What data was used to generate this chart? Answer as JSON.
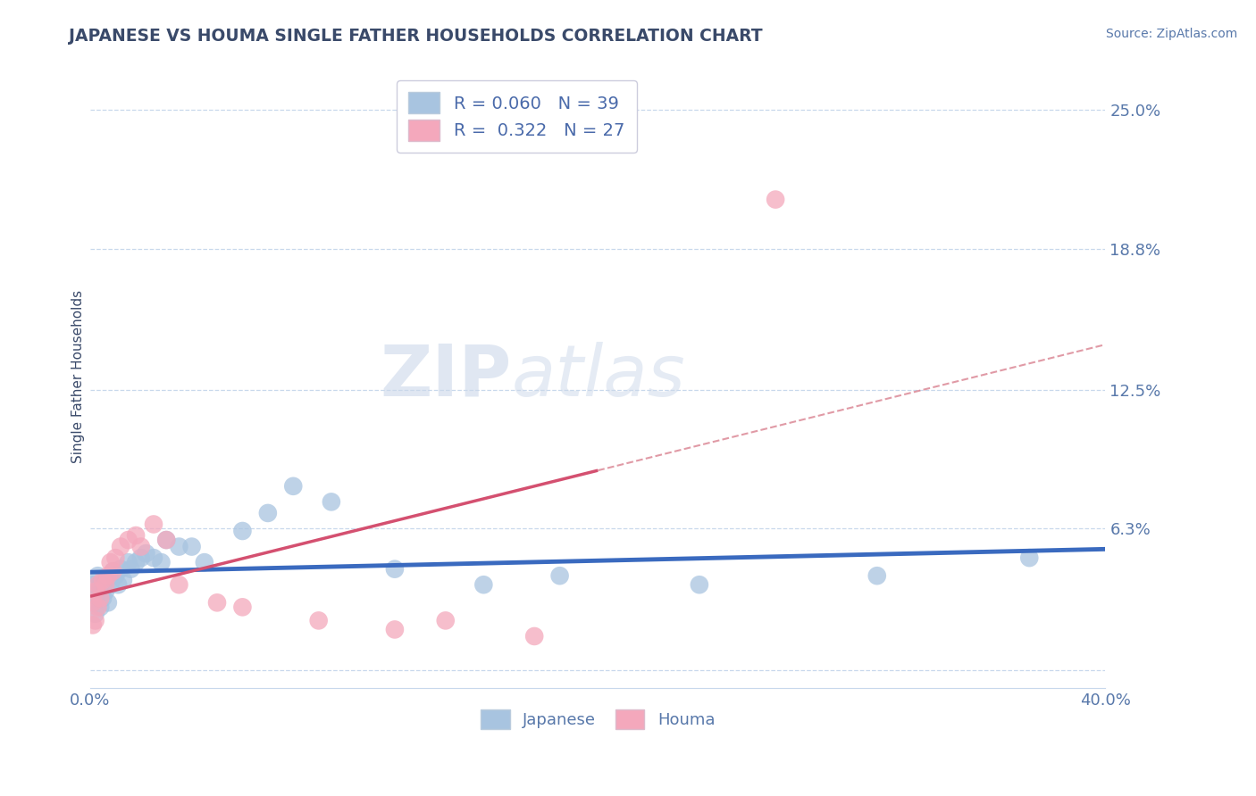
{
  "title": "JAPANESE VS HOUMA SINGLE FATHER HOUSEHOLDS CORRELATION CHART",
  "source": "Source: ZipAtlas.com",
  "ylabel": "Single Father Households",
  "xlim": [
    0.0,
    0.4
  ],
  "ylim": [
    -0.008,
    0.27
  ],
  "yticks": [
    0.0,
    0.063,
    0.125,
    0.188,
    0.25
  ],
  "ytick_labels": [
    "",
    "6.3%",
    "12.5%",
    "18.8%",
    "25.0%"
  ],
  "legend_R_japanese": "0.060",
  "legend_N_japanese": "39",
  "legend_R_houma": "0.322",
  "legend_N_houma": "27",
  "japanese_color": "#a8c4e0",
  "houma_color": "#f4a8bc",
  "japanese_line_color": "#3a6abf",
  "houma_line_color": "#d45070",
  "houma_dash_color": "#d47080",
  "grid_color": "#c8d8ec",
  "legend_text_color": "#4a6aaa",
  "tick_color": "#5878aa",
  "title_color": "#3a4a6a",
  "background_color": "#ffffff",
  "japanese_points_x": [
    0.001,
    0.001,
    0.002,
    0.002,
    0.003,
    0.003,
    0.004,
    0.004,
    0.005,
    0.006,
    0.006,
    0.007,
    0.008,
    0.009,
    0.01,
    0.011,
    0.012,
    0.013,
    0.015,
    0.016,
    0.018,
    0.02,
    0.022,
    0.025,
    0.028,
    0.03,
    0.035,
    0.04,
    0.045,
    0.06,
    0.07,
    0.08,
    0.095,
    0.12,
    0.155,
    0.185,
    0.24,
    0.31,
    0.37
  ],
  "japanese_points_y": [
    0.03,
    0.038,
    0.025,
    0.033,
    0.035,
    0.042,
    0.028,
    0.038,
    0.032,
    0.04,
    0.035,
    0.03,
    0.038,
    0.044,
    0.042,
    0.038,
    0.045,
    0.04,
    0.048,
    0.045,
    0.048,
    0.05,
    0.052,
    0.05,
    0.048,
    0.058,
    0.055,
    0.055,
    0.048,
    0.062,
    0.07,
    0.082,
    0.075,
    0.045,
    0.038,
    0.042,
    0.038,
    0.042,
    0.05
  ],
  "houma_points_x": [
    0.001,
    0.001,
    0.002,
    0.002,
    0.003,
    0.003,
    0.004,
    0.005,
    0.006,
    0.007,
    0.008,
    0.009,
    0.01,
    0.012,
    0.015,
    0.018,
    0.02,
    0.025,
    0.03,
    0.035,
    0.05,
    0.06,
    0.09,
    0.12,
    0.14,
    0.175,
    0.27
  ],
  "houma_points_y": [
    0.02,
    0.03,
    0.022,
    0.035,
    0.028,
    0.038,
    0.032,
    0.04,
    0.038,
    0.042,
    0.048,
    0.044,
    0.05,
    0.055,
    0.058,
    0.06,
    0.055,
    0.065,
    0.058,
    0.038,
    0.03,
    0.028,
    0.022,
    0.018,
    0.022,
    0.015,
    0.21
  ]
}
